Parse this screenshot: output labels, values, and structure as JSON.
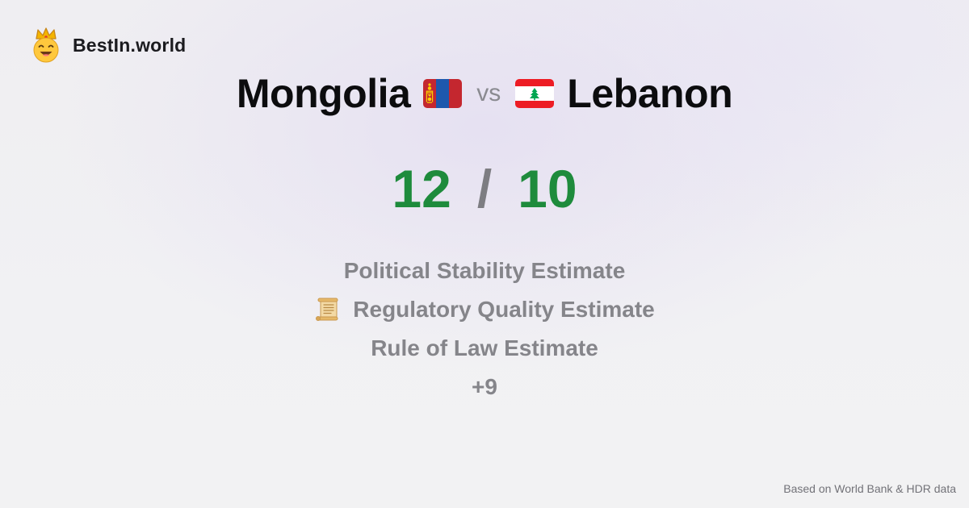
{
  "brand": {
    "name": "BestIn.world",
    "icon": "smiling-face-with-crown-icon"
  },
  "comparison": {
    "left": {
      "country": "Mongolia",
      "flag": "mongolia-flag-icon"
    },
    "separator": "vs",
    "right": {
      "country": "Lebanon",
      "flag": "lebanon-flag-icon"
    }
  },
  "scores": {
    "left": "12",
    "divider": "/",
    "right": "10"
  },
  "metrics": [
    {
      "label": "Political Stability Estimate"
    },
    {
      "label": "Regulatory Quality Estimate",
      "icon": "scroll-icon"
    },
    {
      "label": "Rule of Law Estimate"
    },
    {
      "label": "+9"
    }
  ],
  "footer": {
    "source": "Based on World Bank & HDR data"
  },
  "colors": {
    "score": "#1e8b3c",
    "muted": "#85858a",
    "title": "#0c0c0e"
  }
}
